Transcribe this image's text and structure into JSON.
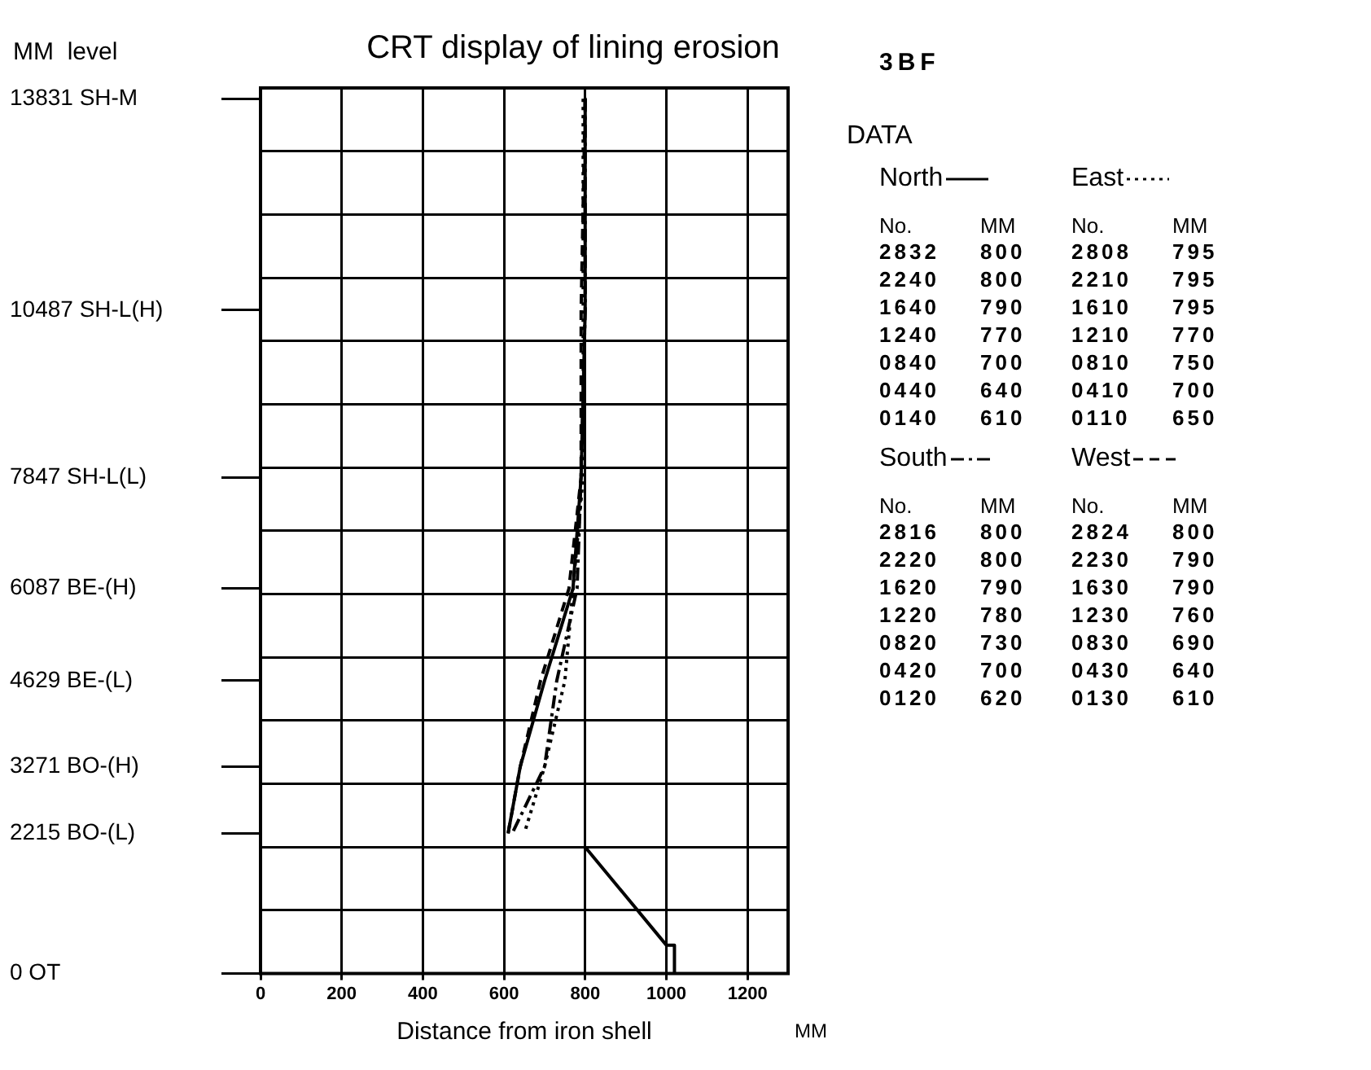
{
  "chart_data": {
    "type": "line",
    "title": "CRT display of lining erosion",
    "xlabel": "Distance from iron shell",
    "ylabel": "MM  level",
    "annotations": [
      "3BF",
      "DATA",
      "No.",
      "MM",
      "MM",
      "2832",
      "800",
      "2240",
      "800",
      "1640",
      "790",
      "1240",
      "770",
      "0840",
      "700",
      "0440",
      "640",
      "0140",
      "610",
      "2808",
      "795",
      "2210",
      "795",
      "1610",
      "795",
      "1210",
      "770",
      "0810",
      "750",
      "0410",
      "700",
      "0110",
      "650",
      "2816",
      "800",
      "2220",
      "800",
      "1620",
      "790",
      "1220",
      "780",
      "0820",
      "730",
      "0420",
      "700",
      "0120",
      "620",
      "2824",
      "800",
      "2230",
      "790",
      "1630",
      "790",
      "1230",
      "760",
      "0830",
      "690",
      "0430",
      "640",
      "0130",
      "610"
    ],
    "xlim": [
      0,
      1300
    ],
    "xticks": [
      0,
      200,
      400,
      600,
      800,
      1000,
      1200
    ],
    "ylim": [
      0,
      14000
    ],
    "yticks": [
      {
        "value": 0,
        "label": "0 OT"
      },
      {
        "value": 1000,
        "label": null
      },
      {
        "value": 2000,
        "label": null
      },
      {
        "value": 2215,
        "label": "2215 BO-(L)"
      },
      {
        "value": 3000,
        "label": null
      },
      {
        "value": 3271,
        "label": "3271 BO-(H)"
      },
      {
        "value": 4000,
        "label": null
      },
      {
        "value": 4629,
        "label": "4629 BE-(L)"
      },
      {
        "value": 5000,
        "label": null
      },
      {
        "value": 6000,
        "label": null
      },
      {
        "value": 6087,
        "label": "6087 BE-(H)"
      },
      {
        "value": 7000,
        "label": null
      },
      {
        "value": 7847,
        "label": "7847 SH-L(L)"
      },
      {
        "value": 8000,
        "label": null
      },
      {
        "value": 9000,
        "label": null
      },
      {
        "value": 10000,
        "label": null
      },
      {
        "value": 10487,
        "label": "10487 SH-L(H)"
      },
      {
        "value": 11000,
        "label": null
      },
      {
        "value": 12000,
        "label": null
      },
      {
        "value": 13000,
        "label": null
      },
      {
        "value": 13831,
        "label": "13831 SH-M"
      }
    ],
    "grid": true,
    "legend": "right",
    "series": [
      {
        "name": "North",
        "color": "#000000",
        "line_style": "solid",
        "x": [
          800,
          800,
          790,
          770,
          700,
          640,
          610
        ],
        "values": [
          13831,
          10487,
          7847,
          6087,
          4629,
          3271,
          2215
        ]
      },
      {
        "name": "East",
        "color": "#000000",
        "line_style": "dotted",
        "x": [
          795,
          795,
          795,
          770,
          750,
          700,
          650
        ],
        "values": [
          13831,
          10487,
          7847,
          6087,
          4629,
          3271,
          2215
        ]
      },
      {
        "name": "South",
        "color": "#000000",
        "line_style": "dashdot",
        "x": [
          800,
          800,
          790,
          780,
          730,
          700,
          620
        ],
        "values": [
          13831,
          10487,
          7847,
          6087,
          4629,
          3271,
          2215
        ]
      },
      {
        "name": "West",
        "color": "#000000",
        "line_style": "dashed",
        "x": [
          800,
          790,
          790,
          760,
          690,
          640,
          610
        ],
        "values": [
          13831,
          10487,
          7847,
          6087,
          4629,
          3271,
          2215
        ]
      },
      {
        "color": "#000000",
        "line_style": "solid",
        "x": [
          800,
          1000,
          1020,
          1020
        ],
        "values": [
          2000,
          450,
          450,
          0
        ]
      }
    ]
  }
}
